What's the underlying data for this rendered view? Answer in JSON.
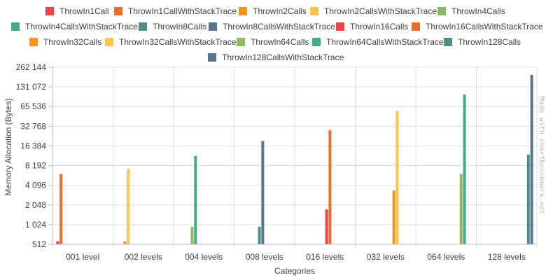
{
  "chart_data": {
    "type": "bar",
    "y_scale": "log2",
    "categories": [
      "001 level",
      "002 levels",
      "004 levels",
      "008 levels",
      "016 levels",
      "032 levels",
      "064 levels",
      "128 levels"
    ],
    "xlabel": "Categories",
    "ylabel": "Memory Allocation (Bytes)",
    "ylim": [
      512,
      262144
    ],
    "y_ticks": [
      512,
      1024,
      2048,
      4096,
      8192,
      16384,
      32768,
      65536,
      131072,
      262144
    ],
    "y_tick_labels": [
      "512",
      "1 024",
      "2 048",
      "4 096",
      "8 192",
      "16 384",
      "32 768",
      "65 536",
      "131 072",
      "262 144"
    ],
    "grid": true,
    "legend_position": "top",
    "watermark": "Made with chartbenchmark.net",
    "series": [
      {
        "name": "ThrowIn1Call",
        "color": "#f0424b",
        "values": [
          570,
          null,
          null,
          null,
          null,
          null,
          null,
          null
        ]
      },
      {
        "name": "ThrowIn1CallWithStackTrace",
        "color": "#ef6d2c",
        "values": [
          6100,
          null,
          null,
          null,
          null,
          null,
          null,
          null
        ]
      },
      {
        "name": "ThrowIn2Calls",
        "color": "#f7941e",
        "values": [
          null,
          570,
          null,
          null,
          null,
          null,
          null,
          null
        ]
      },
      {
        "name": "ThrowIn2CallsWithStackTrace",
        "color": "#f9c54e",
        "values": [
          null,
          7300,
          null,
          null,
          null,
          null,
          null,
          null
        ]
      },
      {
        "name": "ThrowIn4Calls",
        "color": "#8cba5e",
        "values": [
          null,
          null,
          950,
          null,
          null,
          null,
          null,
          null
        ]
      },
      {
        "name": "ThrowIn4CallsWithStackTrace",
        "color": "#44aa87",
        "values": [
          null,
          null,
          11500,
          null,
          null,
          null,
          null,
          null
        ]
      },
      {
        "name": "ThrowIn8Calls",
        "color": "#4d8d8a",
        "values": [
          null,
          null,
          null,
          950,
          null,
          null,
          null,
          null
        ]
      },
      {
        "name": "ThrowIn8CallsWithStackTrace",
        "color": "#577590",
        "values": [
          null,
          null,
          null,
          19500,
          null,
          null,
          null,
          null
        ]
      },
      {
        "name": "ThrowIn16Calls",
        "color": "#f0424b",
        "values": [
          null,
          null,
          null,
          null,
          1750,
          null,
          null,
          null
        ]
      },
      {
        "name": "ThrowIn16CallsWithStackTrace",
        "color": "#ef6d2c",
        "values": [
          null,
          null,
          null,
          null,
          28500,
          null,
          null,
          null
        ]
      },
      {
        "name": "ThrowIn32Calls",
        "color": "#f7941e",
        "values": [
          null,
          null,
          null,
          null,
          null,
          3400,
          null,
          null
        ]
      },
      {
        "name": "ThrowIn32CallsWithStackTrace",
        "color": "#f9c54e",
        "values": [
          null,
          null,
          null,
          null,
          null,
          56000,
          null,
          null
        ]
      },
      {
        "name": "ThrowIn64Calls",
        "color": "#8cba5e",
        "values": [
          null,
          null,
          null,
          null,
          null,
          null,
          6100,
          null
        ]
      },
      {
        "name": "ThrowIn64CallsWithStackTrace",
        "color": "#44aa87",
        "values": [
          null,
          null,
          null,
          null,
          null,
          null,
          100000,
          null
        ]
      },
      {
        "name": "ThrowIn128Calls",
        "color": "#4d8d8a",
        "values": [
          null,
          null,
          null,
          null,
          null,
          null,
          null,
          12000
        ]
      },
      {
        "name": "ThrowIn128CallsWithStackTrace",
        "color": "#577590",
        "values": [
          null,
          null,
          null,
          null,
          null,
          null,
          null,
          200000
        ]
      }
    ]
  }
}
